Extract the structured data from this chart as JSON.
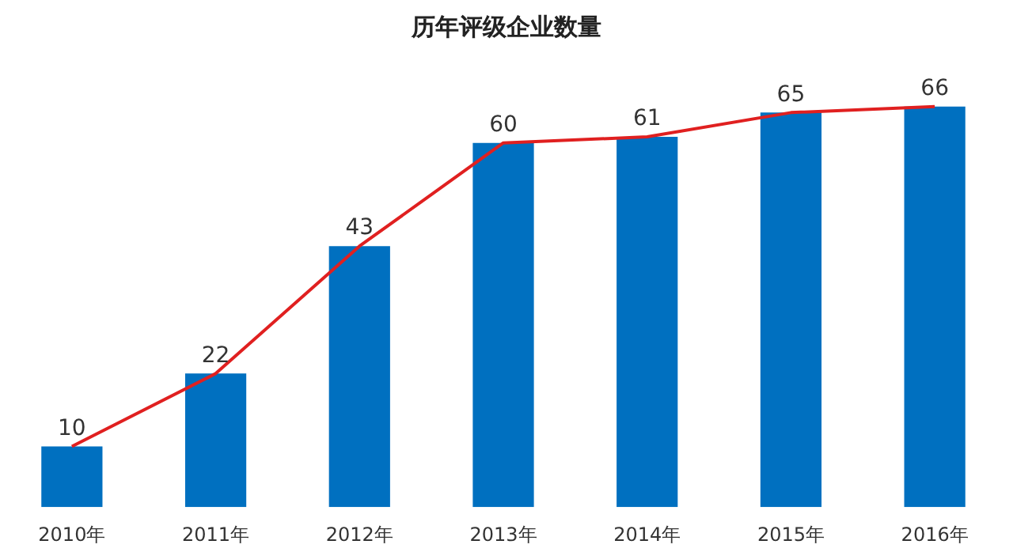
{
  "chart_data": {
    "type": "bar",
    "title": "历年评级企业数量",
    "categories": [
      "2010年",
      "2011年",
      "2012年",
      "2013年",
      "2014年",
      "2015年",
      "2016年"
    ],
    "series": [
      {
        "color": "#0070c0",
        "values": [
          10,
          22,
          43,
          60,
          61,
          65,
          66
        ],
        "value_labels": [
          "10",
          "22",
          "43",
          "60",
          "61",
          "65",
          "66"
        ]
      },
      {
        "type": "line",
        "color": "#e02020",
        "values": [
          10,
          22,
          43,
          60,
          61,
          65,
          66
        ]
      }
    ],
    "grid": false,
    "legend": false,
    "marker": "none",
    "line_style": "solid",
    "tick_labels": "x"
  }
}
